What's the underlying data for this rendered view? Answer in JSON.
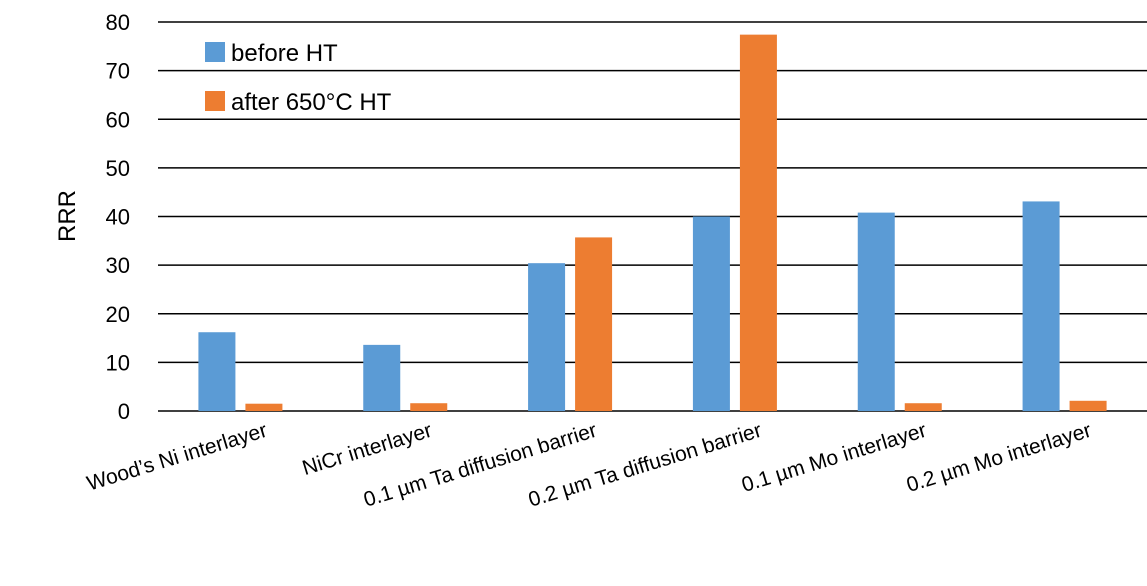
{
  "chart_data": {
    "type": "bar",
    "categories": [
      "Wood’s Ni interlayer",
      "NiCr interlayer",
      "0.1 µm Ta diffusion barrier",
      "0.2 µm Ta diffusion barrier",
      "0.1 µm Mo interlayer",
      "0.2 µm Mo interlayer"
    ],
    "series": [
      {
        "name": "before HT",
        "color": "#5B9BD5",
        "values": [
          16.2,
          13.6,
          30.4,
          40.0,
          40.8,
          43.1
        ]
      },
      {
        "name": "after 650°C HT",
        "color": "#ED7D31",
        "values": [
          1.5,
          1.6,
          35.7,
          77.4,
          1.6,
          2.1
        ]
      }
    ],
    "xlabel": "",
    "ylabel": "RRR",
    "ylim": [
      0,
      80
    ],
    "yticks": [
      0,
      10,
      20,
      30,
      40,
      50,
      60,
      70,
      80
    ],
    "grid": true,
    "legend_position": "top-left"
  }
}
